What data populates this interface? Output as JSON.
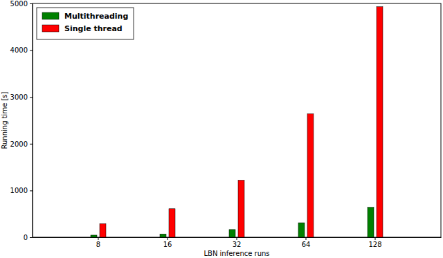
{
  "chart_data": {
    "type": "bar",
    "x_label": "LBN inference runs",
    "y_label": "Running time [s]",
    "categories": [
      "8",
      "16",
      "32",
      "64",
      "128"
    ],
    "series": [
      {
        "name": "Multithreading",
        "color": "#008000",
        "values": [
          45,
          70,
          165,
          310,
          640
        ]
      },
      {
        "name": "Single thread",
        "color": "#ff0000",
        "values": [
          290,
          610,
          1220,
          2640,
          4930
        ]
      }
    ],
    "ylim": [
      0,
      5000
    ],
    "yticks": [
      0,
      1000,
      2000,
      3000,
      4000,
      5000
    ],
    "legend": "upper left"
  }
}
